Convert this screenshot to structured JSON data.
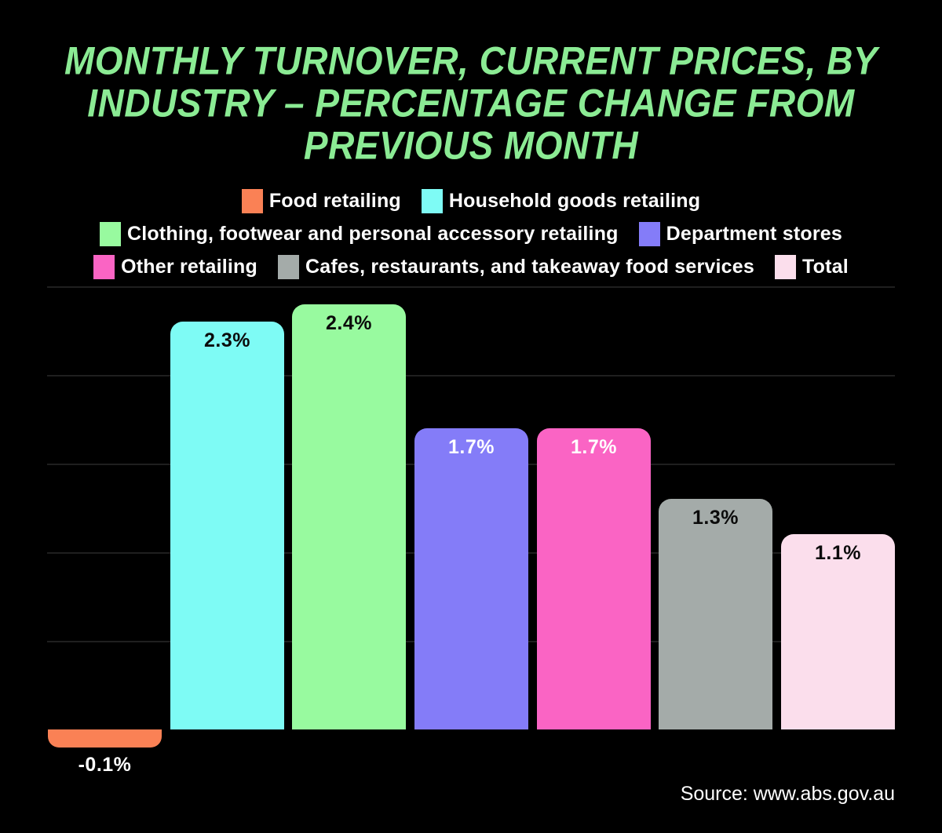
{
  "title": {
    "lines": [
      "MONTHLY TURNOVER, CURRENT PRICES, BY",
      "INDUSTRY – PERCENTAGE CHANGE FROM",
      "PREVIOUS MONTH"
    ]
  },
  "chart_data": {
    "type": "bar",
    "title": "Monthly turnover, current prices, by industry – percentage change from previous month",
    "categories": [
      "Food retailing",
      "Household goods retailing",
      "Clothing, footwear and personal accessory retailing",
      "Department stores",
      "Other retailing",
      "Cafes, restaurants, and takeaway food services",
      "Total"
    ],
    "values": [
      -0.1,
      2.3,
      2.4,
      1.7,
      1.7,
      1.3,
      1.1
    ],
    "value_labels": [
      "-0.1%",
      "2.3%",
      "2.4%",
      "1.7%",
      "1.7%",
      "1.3%",
      "1.1%"
    ],
    "bar_colors": [
      "#FA8155",
      "#7EFBF5",
      "#98FA9F",
      "#847CF8",
      "#FA64C4",
      "#A4ABA9",
      "#FBDEEC"
    ],
    "value_label_colors": [
      "#FFFFFF",
      "#0B0B0B",
      "#0B0B0B",
      "#FFFFFF",
      "#FFFFFF",
      "#0B0B0B",
      "#0B0B0B"
    ],
    "xlabel": "",
    "ylabel": "",
    "ylim": [
      -0.2,
      2.6
    ],
    "gridline_values": [
      0.5,
      1.0,
      1.5,
      2.0,
      2.5
    ],
    "grid": true,
    "legend_position": "top",
    "legend_rows": [
      [
        0,
        1
      ],
      [
        2,
        3
      ],
      [
        4,
        5,
        6
      ]
    ]
  },
  "source": "Source: www.abs.gov.au",
  "colors": {
    "background": "#000000",
    "title": "#8BEB94",
    "grid": "#1F1F1F",
    "legend_text": "#FFFFFF",
    "source_text": "#FFFFFF"
  }
}
